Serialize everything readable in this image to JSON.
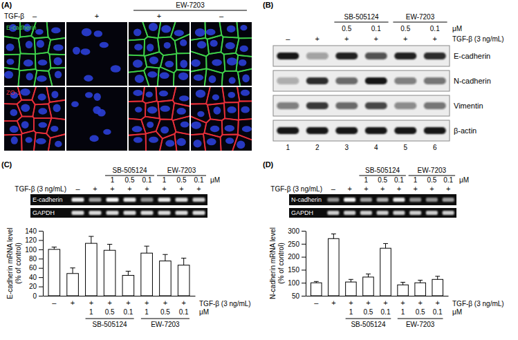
{
  "panel_a": {
    "letter": "(A)",
    "treatment_label": "TGF-β",
    "treatment": [
      "–",
      "+",
      "+",
      "–"
    ],
    "groups": [
      null,
      null,
      "EW-7203",
      "EW-7203"
    ],
    "stains": [
      {
        "name": "E-cadherin",
        "color": "#3fd24a"
      },
      {
        "name": "ZO-1",
        "color": "#e8303a"
      }
    ]
  },
  "panel_b": {
    "letter": "(B)",
    "treatment_label": "TGF-β (3 ng/mL)",
    "treatment": [
      "–",
      "+",
      "+",
      "+",
      "+",
      "+"
    ],
    "doses": [
      null,
      null,
      0.5,
      0.1,
      0.5,
      0.1
    ],
    "dose_unit": "μM",
    "groups": [
      null,
      null,
      "SB-505124",
      "SB-505124",
      "EW-7203",
      "EW-7203"
    ],
    "rows": [
      "E-cadherin",
      "N-cadherin",
      "Vimentin",
      "β-actin"
    ],
    "lanes": [
      1,
      2,
      3,
      4,
      5,
      6
    ]
  },
  "panel_c_gel": {
    "letter": "(C)",
    "treatment_label": "TGF-β (3 ng/mL)",
    "treatment": [
      "–",
      "+",
      "+",
      "+",
      "+",
      "+",
      "+",
      "+"
    ],
    "doses": [
      null,
      null,
      1,
      0.5,
      0.1,
      1,
      0.5,
      0.1
    ],
    "dose_unit": "μM",
    "groups": [
      null,
      null,
      "SB-505124",
      "SB-505124",
      "SB-505124",
      "EW-7203",
      "EW-7203",
      "EW-7203"
    ],
    "rows": [
      "E-cadherin",
      "GAPDH"
    ]
  },
  "panel_d_gel": {
    "letter": "(D)",
    "treatment_label": "TGF-β (3 ng/mL)",
    "treatment": [
      "–",
      "+",
      "+",
      "+",
      "+",
      "+",
      "+",
      "+"
    ],
    "doses": [
      null,
      null,
      1,
      0.5,
      0.1,
      1,
      0.5,
      0.1
    ],
    "dose_unit": "μM",
    "groups": [
      null,
      null,
      "SB-505124",
      "SB-505124",
      "SB-505124",
      "EW-7203",
      "EW-7203",
      "EW-7203"
    ],
    "rows": [
      "N-cadherin",
      "GAPDH"
    ]
  },
  "chart_data": [
    {
      "type": "bar",
      "y_label": "E-cadherin mRNA level (% of control)",
      "categories": [
        "–",
        "+",
        "+",
        "+",
        "+",
        "+",
        "+",
        "+"
      ],
      "doses": [
        null,
        null,
        1,
        0.5,
        0.1,
        1,
        0.5,
        0.1
      ],
      "dose_unit": "μM",
      "treatment_label": "TGF-β (3 ng/mL)",
      "groups": [
        null,
        null,
        "SB-505124",
        "SB-505124",
        "SB-505124",
        "EW-7203",
        "EW-7203",
        "EW-7203"
      ],
      "values": [
        100,
        48,
        113,
        98,
        44,
        92,
        75,
        66
      ],
      "errors": [
        5,
        12,
        15,
        13,
        9,
        15,
        14,
        15
      ],
      "color": "#ffffff",
      "ylim": [
        0,
        140
      ],
      "yticks": [
        0,
        20,
        40,
        60,
        80,
        100,
        120,
        140
      ]
    },
    {
      "type": "bar",
      "y_label": "N-cadherin mRNA level (% of control)",
      "categories": [
        "–",
        "+",
        "+",
        "+",
        "+",
        "+",
        "+",
        "+"
      ],
      "doses": [
        null,
        null,
        1,
        0.5,
        0.1,
        1,
        0.5,
        0.1
      ],
      "dose_unit": "μM",
      "treatment_label": "TGF-β (3 ng/mL)",
      "groups": [
        null,
        null,
        "SB-505124",
        "SB-505124",
        "SB-505124",
        "EW-7203",
        "EW-7203",
        "EW-7203"
      ],
      "values": [
        100,
        270,
        103,
        122,
        233,
        92,
        100,
        113
      ],
      "errors": [
        5,
        18,
        10,
        12,
        18,
        10,
        10,
        12
      ],
      "color": "#ffffff",
      "ylim": [
        50,
        300
      ],
      "yticks": [
        50,
        100,
        150,
        200,
        250,
        300
      ]
    }
  ]
}
